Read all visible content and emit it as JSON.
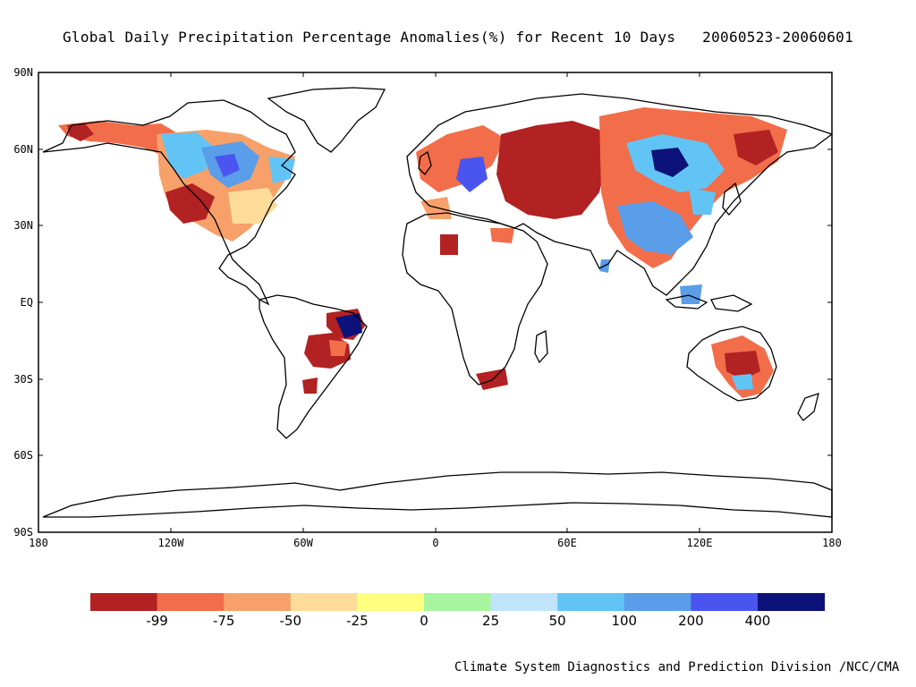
{
  "title": "Global Daily Precipitation Percentage Anomalies(%) for Recent 10 Days   20060523-20060601",
  "axes": {
    "y_ticks": [
      "90N",
      "60N",
      "30N",
      "EQ",
      "30S",
      "60S",
      "90S"
    ],
    "x_ticks": [
      "180",
      "120W",
      "60W",
      "0",
      "60E",
      "120E",
      "180"
    ]
  },
  "legend": {
    "colors": [
      "#b22222",
      "#f26d4a",
      "#f7a06a",
      "#fddc9a",
      "#ffff80",
      "#a8f5a0",
      "#c0e4fa",
      "#62c4f5",
      "#5a9de8",
      "#4a55f0",
      "#0c127a"
    ],
    "labels": [
      "-99",
      "-75",
      "-50",
      "-25",
      "0",
      "25",
      "50",
      "100",
      "200",
      "400"
    ]
  },
  "credit": "Climate System Diagnostics and Prediction Division /NCC/CMA"
}
